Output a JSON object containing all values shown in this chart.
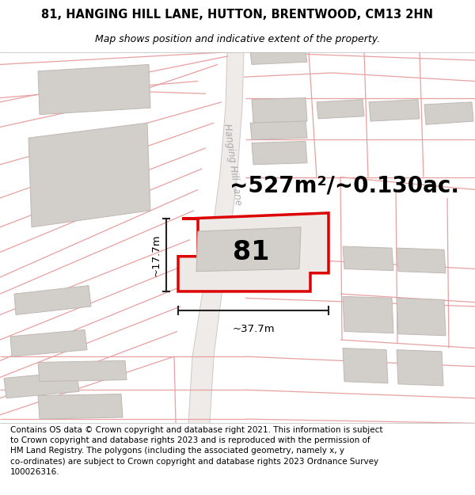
{
  "title_line1": "81, HANGING HILL LANE, HUTTON, BRENTWOOD, CM13 2HN",
  "title_line2": "Map shows position and indicative extent of the property.",
  "footer_text_lines": [
    "Contains OS data © Crown copyright and database right 2021. This information is subject",
    "to Crown copyright and database rights 2023 and is reproduced with the permission of",
    "HM Land Registry. The polygons (including the associated geometry, namely x, y",
    "co-ordinates) are subject to Crown copyright and database rights 2023 Ordnance Survey",
    "100026316."
  ],
  "area_label": "~527m²/~0.130ac.",
  "number_label": "81",
  "dim_width": "~37.7m",
  "dim_height": "~17.7m",
  "street_label": "Hanging Hill Lane",
  "bg_color": "#f8f5f3",
  "plot_outline_color": "#dd0000",
  "plot_fill_color": "#ede9e7",
  "building_fill": "#d2ceca",
  "building_edge": "#c0b8b5",
  "prop_line_color": "#e8a0a0",
  "road_fill": "#eeebe8",
  "road_edge": "#d0c8c4",
  "dim_line_color": "#222222",
  "street_label_color": "#aaaaaa",
  "title_fontsize": 10.5,
  "subtitle_fontsize": 9.0,
  "footer_fontsize": 7.5,
  "area_fontsize": 20,
  "number_fontsize": 24,
  "street_fontsize": 8.5,
  "fig_width": 6.0,
  "fig_height": 6.25
}
